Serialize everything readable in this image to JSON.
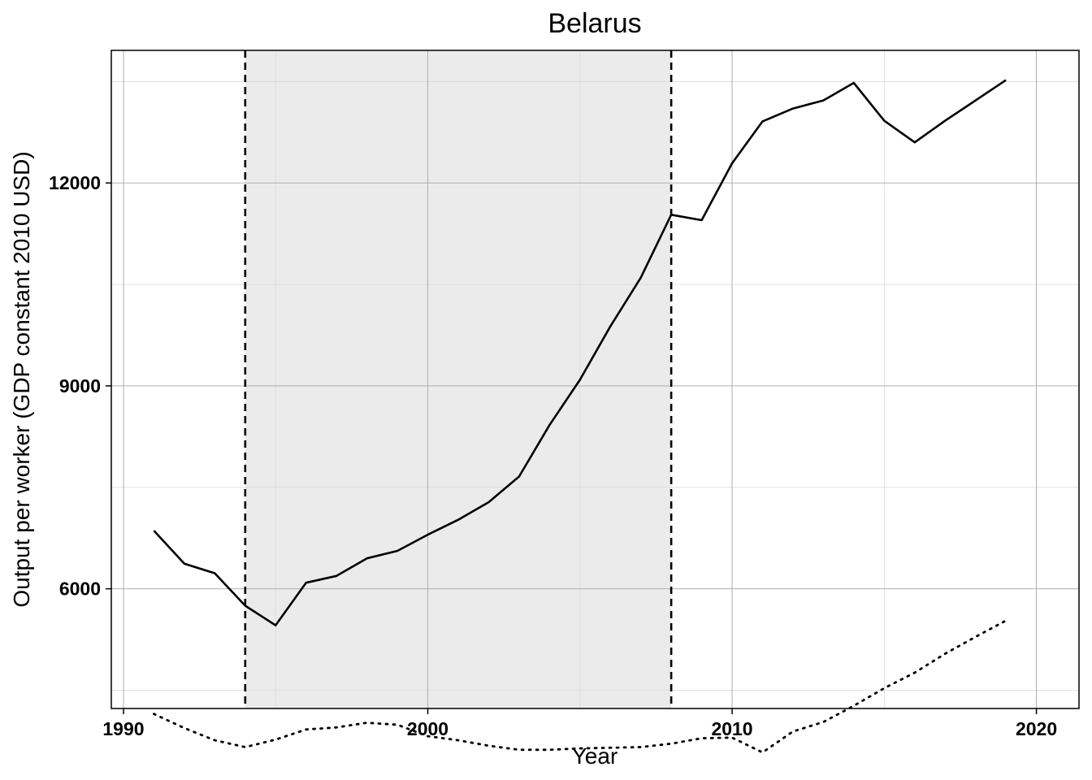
{
  "chart_data": {
    "type": "line",
    "title": "Belarus",
    "xlabel": "Year",
    "ylabel": "Output per worker (GDP constant 2010 USD)",
    "xlim": [
      1989.6,
      2021.4
    ],
    "ylim": [
      4230,
      13960
    ],
    "x_ticks": [
      1990,
      2000,
      2010,
      2020
    ],
    "y_ticks": [
      6000,
      9000,
      12000
    ],
    "y_minor_ticks": [
      4500,
      7500,
      10500,
      13500
    ],
    "x_minor_ticks": [
      1995,
      2005,
      2015
    ],
    "grid": true,
    "shaded_region": {
      "x_start": 1994,
      "x_end": 2008,
      "color": "#ebebeb"
    },
    "vlines": [
      1994,
      2008
    ],
    "series": [
      {
        "style": "solid",
        "x": [
          1991,
          1992,
          1993,
          1994,
          1995,
          1996,
          1997,
          1998,
          1999,
          2000,
          2001,
          2002,
          2003,
          2004,
          2005,
          2006,
          2007,
          2008,
          2009,
          2010,
          2011,
          2012,
          2013,
          2014,
          2015,
          2016,
          2017,
          2018,
          2019
        ],
        "values": [
          6860,
          6370,
          6230,
          5750,
          5460,
          6090,
          6190,
          6450,
          6560,
          6800,
          7020,
          7280,
          7660,
          8420,
          9090,
          9880,
          10600,
          11530,
          11450,
          12290,
          12910,
          13100,
          13220,
          13480,
          12920,
          12600,
          12920,
          13220,
          13520
        ]
      },
      {
        "style": "dotted",
        "x": [
          1991,
          1992,
          1993,
          1994,
          1995,
          1996,
          1997,
          1998,
          1999,
          2000,
          2001,
          2002,
          2003,
          2004,
          2005,
          2006,
          2007,
          2008,
          2009,
          2010,
          2011,
          2012,
          2013,
          2014,
          2015,
          2016,
          2017,
          2018,
          2019
        ],
        "values": [
          4150,
          3940,
          3760,
          3660,
          3770,
          3920,
          3950,
          4020,
          3990,
          3820,
          3760,
          3680,
          3620,
          3620,
          3640,
          3650,
          3660,
          3710,
          3790,
          3800,
          3580,
          3890,
          4030,
          4270,
          4530,
          4760,
          5040,
          5290,
          5530
        ]
      }
    ]
  }
}
